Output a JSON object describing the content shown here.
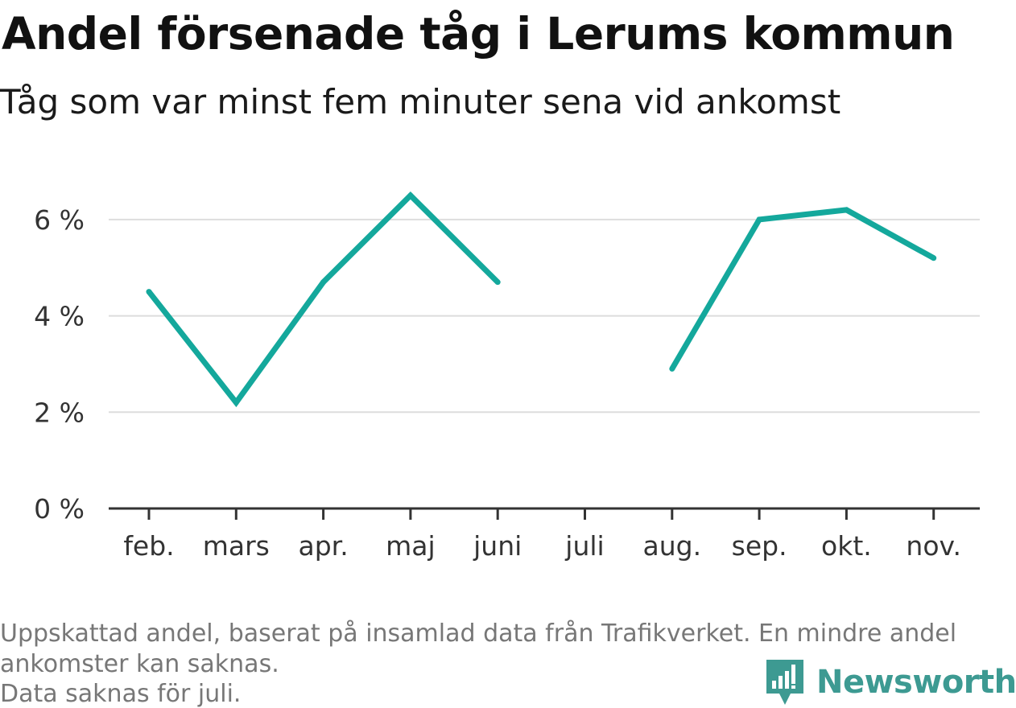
{
  "title": "Andel försenade tåg i Lerums kommun",
  "subtitle": "Tåg som var minst fem minuter sena vid ankomst",
  "chart_data": {
    "type": "line",
    "title": "Andel försenade tåg i Lerums kommun",
    "subtitle": "Tåg som var minst fem minuter sena vid ankomst",
    "xlabel": "",
    "ylabel": "",
    "categories": [
      "feb.",
      "mars",
      "apr.",
      "maj",
      "juni",
      "juli",
      "aug.",
      "sep.",
      "okt.",
      "nov."
    ],
    "series": [
      {
        "name": "Andel försenade tåg",
        "color": "#14a89c",
        "values": [
          4.5,
          2.2,
          4.7,
          6.5,
          4.7,
          null,
          2.9,
          6.0,
          6.2,
          5.2
        ]
      }
    ],
    "ylim": [
      0,
      7
    ],
    "yticks": [
      0,
      2,
      4,
      6
    ],
    "ytick_labels": [
      "0 %",
      "2 %",
      "4 %",
      "6 %"
    ],
    "grid": true
  },
  "footnote": {
    "line1": "Uppskattad andel, baserat på insamlad data från Trafikverket. En mindre andel",
    "line2": "ankomster kan saknas.",
    "line3": "Data saknas för juli."
  },
  "brand": {
    "name": "Newsworthy",
    "icon": "newsworthy-logo-icon",
    "color": "#3d9a92"
  }
}
